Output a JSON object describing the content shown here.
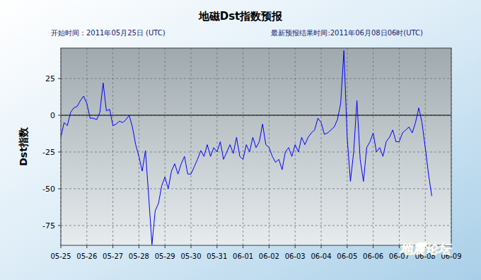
{
  "chart_data": {
    "type": "line",
    "title": "地磁Dst指数预报",
    "subtitle": "开始时间：2011年05月25日 (UTC)",
    "subtitle_right": "最新预报结果时间:2011年06月08日06时(UTC)",
    "y_label": "Dst指数",
    "annotations": [
      "地震论坛"
    ],
    "color": "#0000ff",
    "grid": true,
    "reference_line": 0,
    "ylim": [
      -88.5,
      45.7
    ],
    "yticks": [
      -75,
      -50,
      -25,
      0,
      25
    ],
    "categories": [
      "05-25",
      null,
      null,
      null,
      null,
      null,
      null,
      null,
      "05-26",
      null,
      null,
      null,
      null,
      null,
      null,
      null,
      "05-27",
      null,
      null,
      null,
      null,
      null,
      null,
      null,
      "05-28",
      null,
      null,
      null,
      null,
      null,
      null,
      null,
      "05-29",
      null,
      null,
      null,
      null,
      null,
      null,
      null,
      "05-30",
      null,
      null,
      null,
      null,
      null,
      null,
      null,
      "05-31",
      null,
      null,
      null,
      null,
      null,
      null,
      null,
      "06-01",
      null,
      null,
      null,
      null,
      null,
      null,
      null,
      "06-02",
      null,
      null,
      null,
      null,
      null,
      null,
      null,
      "06-03",
      null,
      null,
      null,
      null,
      null,
      null,
      null,
      "06-04",
      null,
      null,
      null,
      null,
      null,
      null,
      null,
      "06-05",
      null,
      null,
      null,
      null,
      null,
      null,
      null,
      "06-06",
      null,
      null,
      null,
      null,
      null,
      null,
      null,
      "06-07",
      null,
      null,
      null,
      null,
      null,
      null,
      null,
      "06-08",
      null,
      null,
      null,
      null,
      null,
      null,
      null,
      "06-09"
    ],
    "values": [
      -15,
      -5,
      -7,
      2,
      5,
      6,
      10,
      13,
      8,
      -2,
      -2,
      -3,
      2,
      22,
      3,
      4,
      -7,
      -6,
      -4,
      -5,
      -3,
      0,
      -8,
      -20,
      -28,
      -38,
      -24,
      -55,
      -88,
      -65,
      -60,
      -48,
      -42,
      -50,
      -38,
      -33,
      -40,
      -33,
      -28,
      -40,
      -40,
      -35,
      -30,
      -24,
      -28,
      -20,
      -28,
      -22,
      -25,
      -18,
      -30,
      -25,
      -20,
      -26,
      -15,
      -28,
      -30,
      -20,
      -25,
      -15,
      -22,
      -18,
      -6,
      -20,
      -22,
      -28,
      -32,
      -30,
      -37,
      -25,
      -22,
      -28,
      -20,
      -25,
      -15,
      -20,
      -15,
      -12,
      -10,
      -2,
      -5,
      -13,
      -12,
      -10,
      -8,
      -3,
      8,
      44,
      -15,
      -45,
      -25,
      10,
      -30,
      -45,
      -22,
      -18,
      -12,
      -25,
      -22,
      -28,
      -18,
      -15,
      -10,
      -18,
      -18,
      -12,
      -10,
      -8,
      -12,
      -5,
      5,
      -5,
      -22,
      -40,
      -55,
      null,
      null,
      null,
      null,
      null,
      null
    ]
  }
}
